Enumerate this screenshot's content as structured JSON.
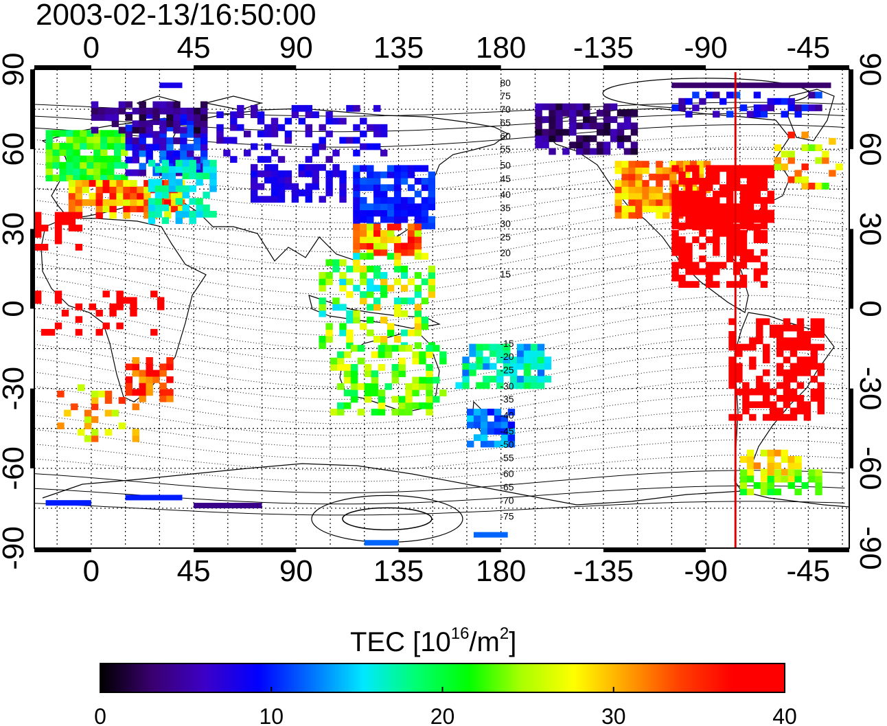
{
  "title": "2003-02-13/16:50:00",
  "map": {
    "lon_min": -25,
    "lon_max": 333,
    "lat_min": -90,
    "lat_max": 90,
    "lon_tick_values": [
      0,
      45,
      90,
      135,
      180,
      225,
      270,
      315
    ],
    "lon_tick_labels": [
      "0",
      "45",
      "90",
      "135",
      "180",
      "-135",
      "-90",
      "-45"
    ],
    "lat_tick_values": [
      90,
      60,
      30,
      0,
      -30,
      -60,
      -90
    ],
    "lat_tick_labels": [
      "90",
      "60",
      "30",
      "0",
      "-30",
      "-60",
      "-90"
    ],
    "grid": true,
    "terminator_longitude": 283,
    "terminator_color": "#e00000",
    "contour_labels": [
      {
        "text": "80",
        "lon": 182,
        "lat": 85
      },
      {
        "text": "75",
        "lon": 182,
        "lat": 80
      },
      {
        "text": "70",
        "lon": 182,
        "lat": 75
      },
      {
        "text": "65",
        "lon": 182,
        "lat": 70
      },
      {
        "text": "60",
        "lon": 182,
        "lat": 65
      },
      {
        "text": "55",
        "lon": 182,
        "lat": 60
      },
      {
        "text": "50",
        "lon": 182,
        "lat": 54
      },
      {
        "text": "45",
        "lon": 182,
        "lat": 49
      },
      {
        "text": "40",
        "lon": 182,
        "lat": 43
      },
      {
        "text": "35",
        "lon": 182,
        "lat": 38
      },
      {
        "text": "30",
        "lon": 182,
        "lat": 32
      },
      {
        "text": "25",
        "lon": 182,
        "lat": 27
      },
      {
        "text": "20",
        "lon": 182,
        "lat": 21
      },
      {
        "text": "15",
        "lon": 182,
        "lat": 13
      },
      {
        "text": "-15",
        "lon": 182,
        "lat": -13
      },
      {
        "text": "-20",
        "lon": 182,
        "lat": -18
      },
      {
        "text": "-25",
        "lon": 182,
        "lat": -23
      },
      {
        "text": "-30",
        "lon": 182,
        "lat": -29
      },
      {
        "text": "-35",
        "lon": 182,
        "lat": -34
      },
      {
        "text": "-40",
        "lon": 182,
        "lat": -40
      },
      {
        "text": "-45",
        "lon": 182,
        "lat": -46
      },
      {
        "text": "-50",
        "lon": 182,
        "lat": -51
      },
      {
        "text": "-55",
        "lon": 182,
        "lat": -56
      },
      {
        "text": "-60",
        "lon": 182,
        "lat": -62
      },
      {
        "text": "-65",
        "lon": 182,
        "lat": -67
      },
      {
        "text": "-70",
        "lon": 182,
        "lat": -72
      },
      {
        "text": "-75",
        "lon": 182,
        "lat": -78
      }
    ]
  },
  "tec_regions": [
    {
      "lon": [
        -20,
        15
      ],
      "lat": [
        48,
        65
      ],
      "tec": [
        18,
        25
      ],
      "density": 0.85
    },
    {
      "lon": [
        -10,
        40
      ],
      "lat": [
        34,
        48
      ],
      "tec": [
        26,
        38
      ],
      "density": 0.8
    },
    {
      "lon": [
        15,
        50
      ],
      "lat": [
        50,
        72
      ],
      "tec": [
        4,
        13
      ],
      "density": 0.75
    },
    {
      "lon": [
        0,
        50
      ],
      "lat": [
        66,
        78
      ],
      "tec": [
        1,
        6
      ],
      "density": 0.7
    },
    {
      "lon": [
        25,
        55
      ],
      "lat": [
        32,
        55
      ],
      "tec": [
        14,
        19
      ],
      "density": 0.55
    },
    {
      "lon": [
        -25,
        -5
      ],
      "lat": [
        22,
        35
      ],
      "tec": [
        37,
        40
      ],
      "density": 0.5
    },
    {
      "lon": [
        -25,
        35
      ],
      "lat": [
        -10,
        5
      ],
      "tec": [
        38,
        40
      ],
      "density": 0.25
    },
    {
      "lon": [
        15,
        35
      ],
      "lat": [
        -35,
        -20
      ],
      "tec": [
        30,
        40
      ],
      "density": 0.6
    },
    {
      "lon": [
        -15,
        20
      ],
      "lat": [
        -50,
        -30
      ],
      "tec": [
        25,
        35
      ],
      "density": 0.2
    },
    {
      "lon": [
        70,
        110
      ],
      "lat": [
        40,
        53
      ],
      "tec": [
        6,
        9
      ],
      "density": 0.7
    },
    {
      "lon": [
        55,
        130
      ],
      "lat": [
        55,
        75
      ],
      "tec": [
        5,
        9
      ],
      "density": 0.3
    },
    {
      "lon": [
        115,
        150
      ],
      "lat": [
        30,
        52
      ],
      "tec": [
        8,
        12
      ],
      "density": 0.8
    },
    {
      "lon": [
        115,
        145
      ],
      "lat": [
        20,
        30
      ],
      "tec": [
        24,
        38
      ],
      "density": 0.75
    },
    {
      "lon": [
        100,
        150
      ],
      "lat": [
        -15,
        20
      ],
      "tec": [
        15,
        30
      ],
      "density": 0.45
    },
    {
      "lon": [
        105,
        155
      ],
      "lat": [
        -40,
        -15
      ],
      "tec": [
        18,
        28
      ],
      "density": 0.55
    },
    {
      "lon": [
        160,
        200
      ],
      "lat": [
        -30,
        -15
      ],
      "tec": [
        12,
        20
      ],
      "density": 0.65
    },
    {
      "lon": [
        165,
        185
      ],
      "lat": [
        -52,
        -40
      ],
      "tec": [
        9,
        15
      ],
      "density": 0.75
    },
    {
      "lon": [
        195,
        240
      ],
      "lat": [
        58,
        75
      ],
      "tec": [
        1,
        6
      ],
      "density": 0.7
    },
    {
      "lon": [
        230,
        270
      ],
      "lat": [
        34,
        55
      ],
      "tec": [
        27,
        35
      ],
      "density": 0.8
    },
    {
      "lon": [
        255,
        300
      ],
      "lat": [
        30,
        52
      ],
      "tec": [
        37,
        40
      ],
      "density": 0.85
    },
    {
      "lon": [
        255,
        295
      ],
      "lat": [
        8,
        30
      ],
      "tec": [
        37,
        40
      ],
      "density": 0.55
    },
    {
      "lon": [
        280,
        320
      ],
      "lat": [
        -42,
        -5
      ],
      "tec": [
        37,
        40
      ],
      "density": 0.6
    },
    {
      "lon": [
        285,
        310
      ],
      "lat": [
        -65,
        -55
      ],
      "tec": [
        26,
        34
      ],
      "density": 0.6
    },
    {
      "lon": [
        285,
        320
      ],
      "lat": [
        -70,
        -62
      ],
      "tec": [
        20,
        26
      ],
      "density": 0.5
    },
    {
      "lon": [
        300,
        330
      ],
      "lat": [
        45,
        65
      ],
      "tec": [
        22,
        36
      ],
      "density": 0.3
    },
    {
      "lon": [
        255,
        320
      ],
      "lat": [
        72,
        80
      ],
      "tec": [
        4,
        12
      ],
      "density": 0.45
    }
  ],
  "tec_bars": [
    {
      "lon": [
        -20,
        0
      ],
      "lat": -73,
      "tec": 10
    },
    {
      "lon": [
        15,
        40
      ],
      "lat": -71,
      "tec": 10
    },
    {
      "lon": [
        45,
        75
      ],
      "lat": -74,
      "tec": 4
    },
    {
      "lon": [
        120,
        135
      ],
      "lat": -88,
      "tec": 12
    },
    {
      "lon": [
        168,
        183
      ],
      "lat": -85,
      "tec": 12
    },
    {
      "lon": [
        255,
        325
      ],
      "lat": 84,
      "tec": 3
    },
    {
      "lon": [
        30,
        40
      ],
      "lat": 84,
      "tec": 8
    }
  ],
  "colorbar": {
    "title": "TEC  [10",
    "title_sup": "16",
    "title_unit": "/m",
    "title_sup2": "2",
    "title_end": "]",
    "min": 0,
    "max": 40,
    "tick_values": [
      0,
      10,
      20,
      30,
      40
    ],
    "tick_labels": [
      "0",
      "10",
      "20",
      "30",
      "40"
    ],
    "colormap": [
      "#000000",
      "#3a0070",
      "#3c00c8",
      "#0000ff",
      "#0070ff",
      "#00e8ff",
      "#00ff70",
      "#00ff00",
      "#aaff00",
      "#ffff00",
      "#ffa000",
      "#ff4000",
      "#ff0000",
      "#ff0000"
    ]
  }
}
